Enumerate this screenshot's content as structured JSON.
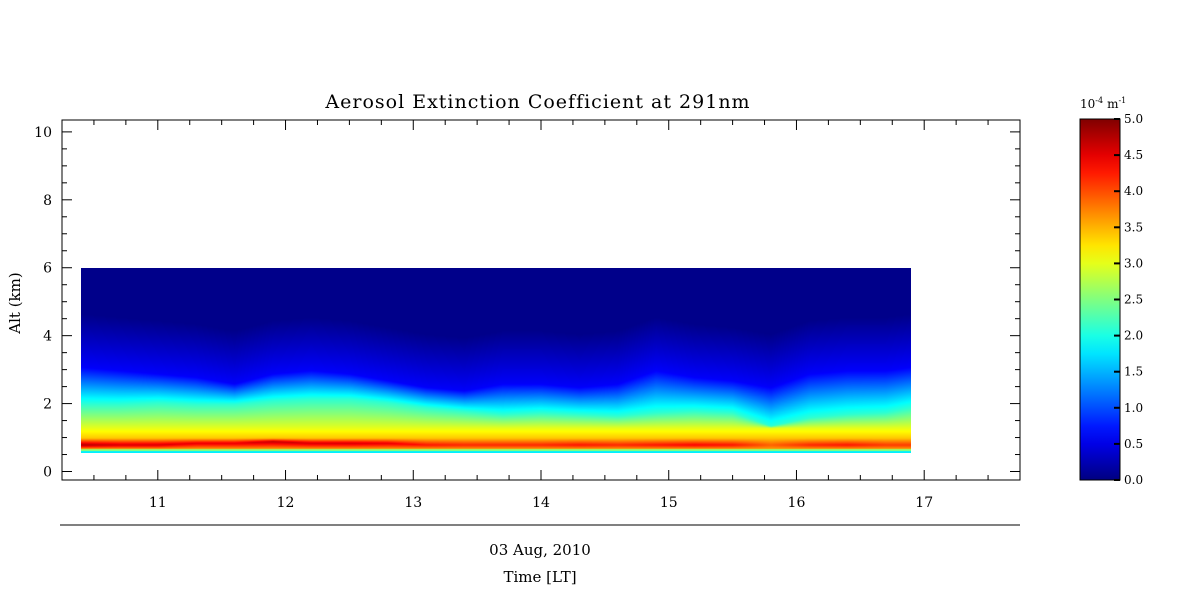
{
  "chart_data": {
    "type": "heatmap",
    "title": "Aerosol Extinction Coefficient at 291nm",
    "xlabel_date": "03 Aug, 2010",
    "xlabel": "Time [LT]",
    "ylabel": "Alt (km)",
    "xlim": [
      10.25,
      17.75
    ],
    "ylim": [
      -0.25,
      10.35
    ],
    "x_ticks": [
      "11",
      "12",
      "13",
      "14",
      "15",
      "16",
      "17"
    ],
    "y_ticks": [
      "0",
      "2",
      "4",
      "6",
      "8",
      "10"
    ],
    "data_extent": {
      "time_start": 10.4,
      "time_end": 16.9,
      "alt_bottom": 0.55,
      "alt_top": 6.0
    },
    "colorbar": {
      "unit_prefix": "10",
      "unit_exp": "-4",
      "unit_suffix": "m",
      "unit_suffix_exp": "-1",
      "range": [
        0.0,
        5.0
      ],
      "ticks": [
        "0.0",
        "0.5",
        "1.0",
        "1.5",
        "2.0",
        "2.5",
        "3.0",
        "3.5",
        "4.0",
        "4.5",
        "5.0"
      ],
      "colormap": "jet"
    },
    "profiles": [
      {
        "time": 10.4,
        "top": 3.1,
        "mid": 2.0,
        "peak_alt": 0.8,
        "peak": 4.8
      },
      {
        "time": 10.7,
        "top": 3.0,
        "mid": 2.0,
        "peak_alt": 0.8,
        "peak": 4.6
      },
      {
        "time": 11.0,
        "top": 2.9,
        "mid": 2.05,
        "peak_alt": 0.8,
        "peak": 4.6
      },
      {
        "time": 11.3,
        "top": 2.8,
        "mid": 2.0,
        "peak_alt": 0.85,
        "peak": 4.5
      },
      {
        "time": 11.6,
        "top": 2.6,
        "mid": 2.0,
        "peak_alt": 0.85,
        "peak": 4.5
      },
      {
        "time": 11.9,
        "top": 2.9,
        "mid": 2.1,
        "peak_alt": 0.9,
        "peak": 4.7
      },
      {
        "time": 12.2,
        "top": 3.0,
        "mid": 2.15,
        "peak_alt": 0.85,
        "peak": 4.6
      },
      {
        "time": 12.5,
        "top": 2.9,
        "mid": 2.15,
        "peak_alt": 0.85,
        "peak": 4.6
      },
      {
        "time": 12.8,
        "top": 2.7,
        "mid": 2.05,
        "peak_alt": 0.85,
        "peak": 4.5
      },
      {
        "time": 13.1,
        "top": 2.5,
        "mid": 1.9,
        "peak_alt": 0.8,
        "peak": 4.3
      },
      {
        "time": 13.4,
        "top": 2.4,
        "mid": 1.8,
        "peak_alt": 0.8,
        "peak": 4.2
      },
      {
        "time": 13.7,
        "top": 2.6,
        "mid": 1.7,
        "peak_alt": 0.8,
        "peak": 4.2
      },
      {
        "time": 14.0,
        "top": 2.6,
        "mid": 1.75,
        "peak_alt": 0.8,
        "peak": 4.2
      },
      {
        "time": 14.3,
        "top": 2.5,
        "mid": 1.7,
        "peak_alt": 0.8,
        "peak": 4.3
      },
      {
        "time": 14.6,
        "top": 2.6,
        "mid": 1.65,
        "peak_alt": 0.8,
        "peak": 4.2
      },
      {
        "time": 14.9,
        "top": 3.0,
        "mid": 1.75,
        "peak_alt": 0.8,
        "peak": 4.3
      },
      {
        "time": 15.2,
        "top": 2.8,
        "mid": 1.8,
        "peak_alt": 0.8,
        "peak": 4.4
      },
      {
        "time": 15.5,
        "top": 2.7,
        "mid": 1.75,
        "peak_alt": 0.8,
        "peak": 4.3
      },
      {
        "time": 15.8,
        "top": 2.5,
        "mid": 1.35,
        "peak_alt": 0.8,
        "peak": 3.9
      },
      {
        "time": 16.1,
        "top": 2.9,
        "mid": 1.6,
        "peak_alt": 0.8,
        "peak": 4.2
      },
      {
        "time": 16.4,
        "top": 3.0,
        "mid": 1.7,
        "peak_alt": 0.8,
        "peak": 4.3
      },
      {
        "time": 16.7,
        "top": 3.0,
        "mid": 1.75,
        "peak_alt": 0.8,
        "peak": 4.1
      },
      {
        "time": 16.9,
        "top": 3.1,
        "mid": 1.9,
        "peak_alt": 0.8,
        "peak": 4.1
      }
    ]
  }
}
